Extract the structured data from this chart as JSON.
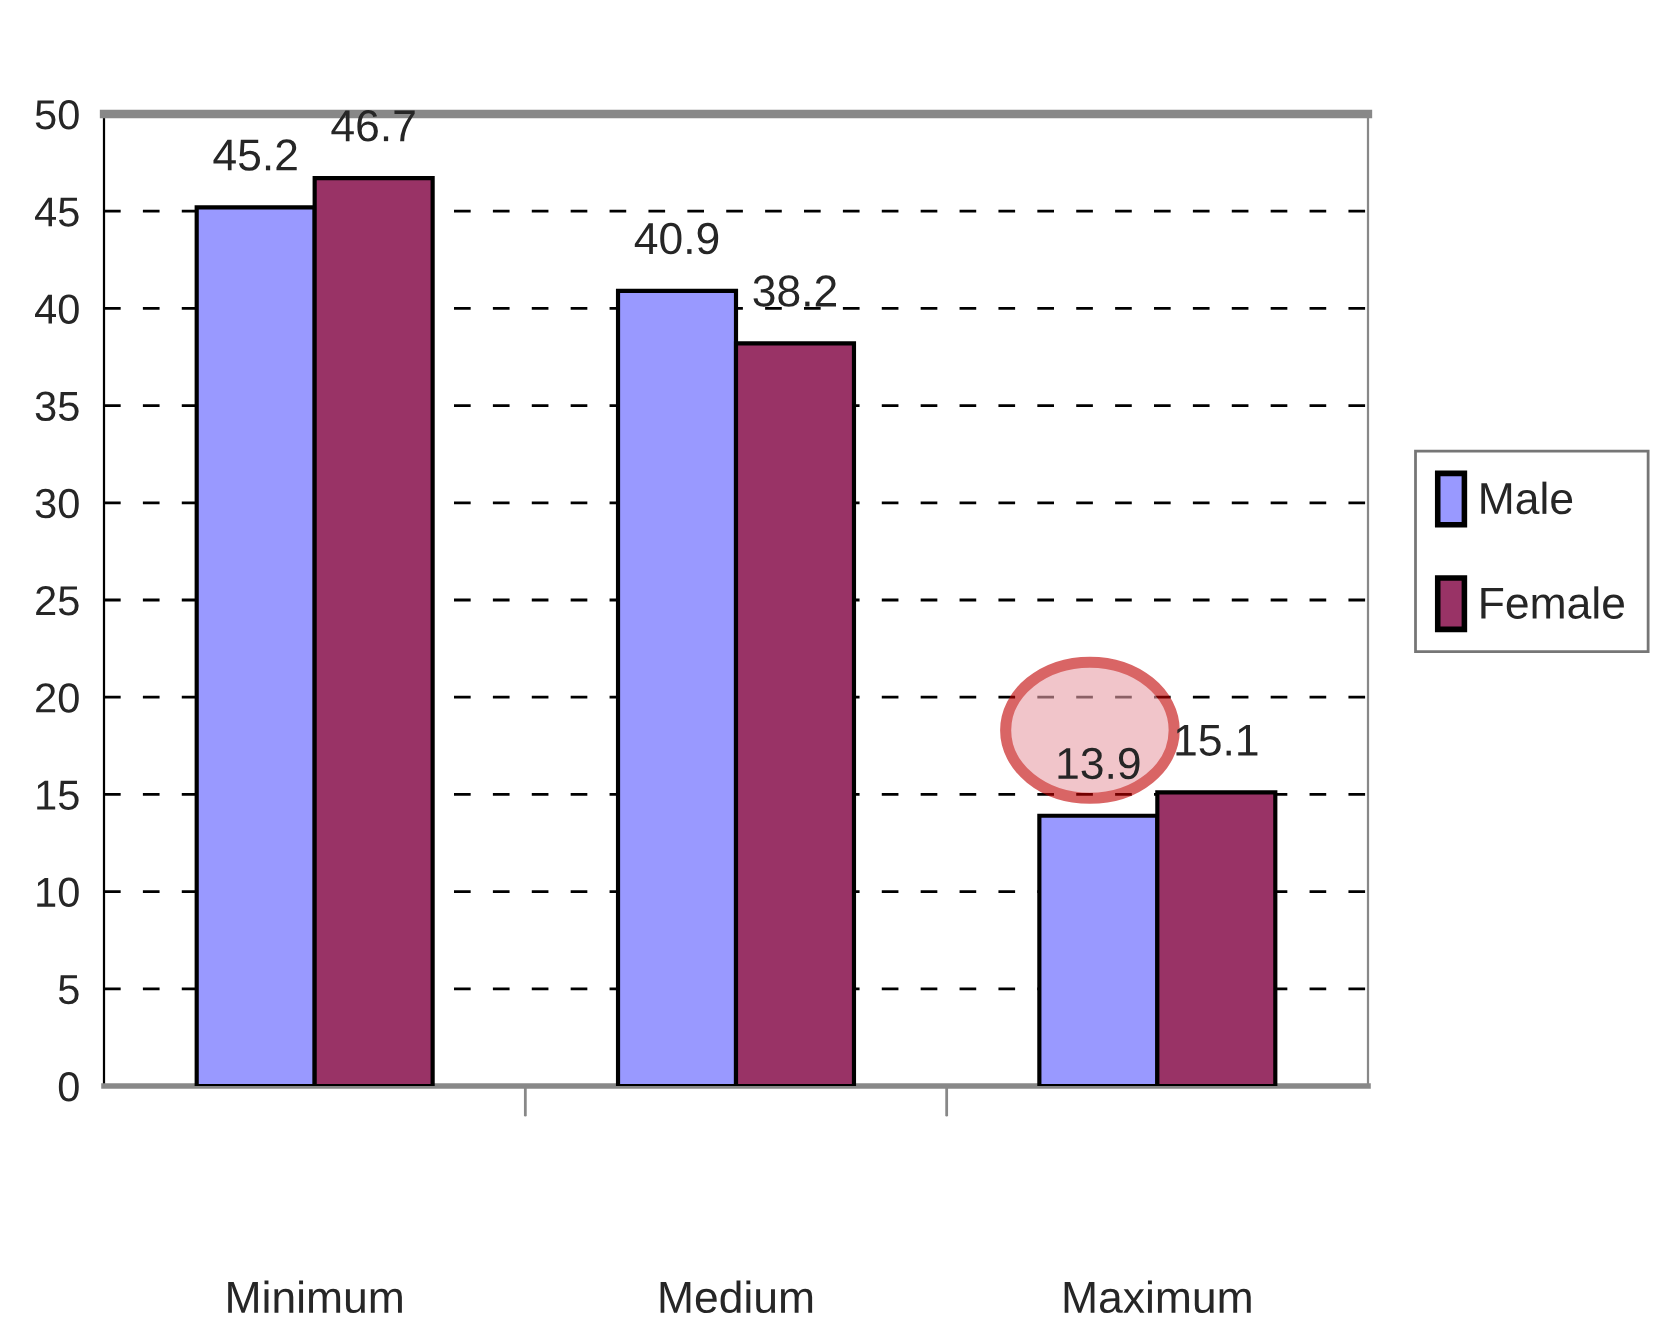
{
  "chart_data": {
    "type": "bar",
    "categories": [
      "Minimum",
      "Medium",
      "Maximum"
    ],
    "series": [
      {
        "name": "Male",
        "color": "#9999ff",
        "values": [
          45.2,
          40.9,
          13.9
        ]
      },
      {
        "name": "Female",
        "color": "#993366",
        "values": [
          46.7,
          38.2,
          15.1
        ]
      }
    ],
    "ylim": [
      0,
      50
    ],
    "yticks": [
      0,
      5,
      10,
      15,
      20,
      25,
      30,
      35,
      40,
      45,
      50
    ],
    "grid": "y",
    "legend": "right",
    "data_labels": true
  }
}
